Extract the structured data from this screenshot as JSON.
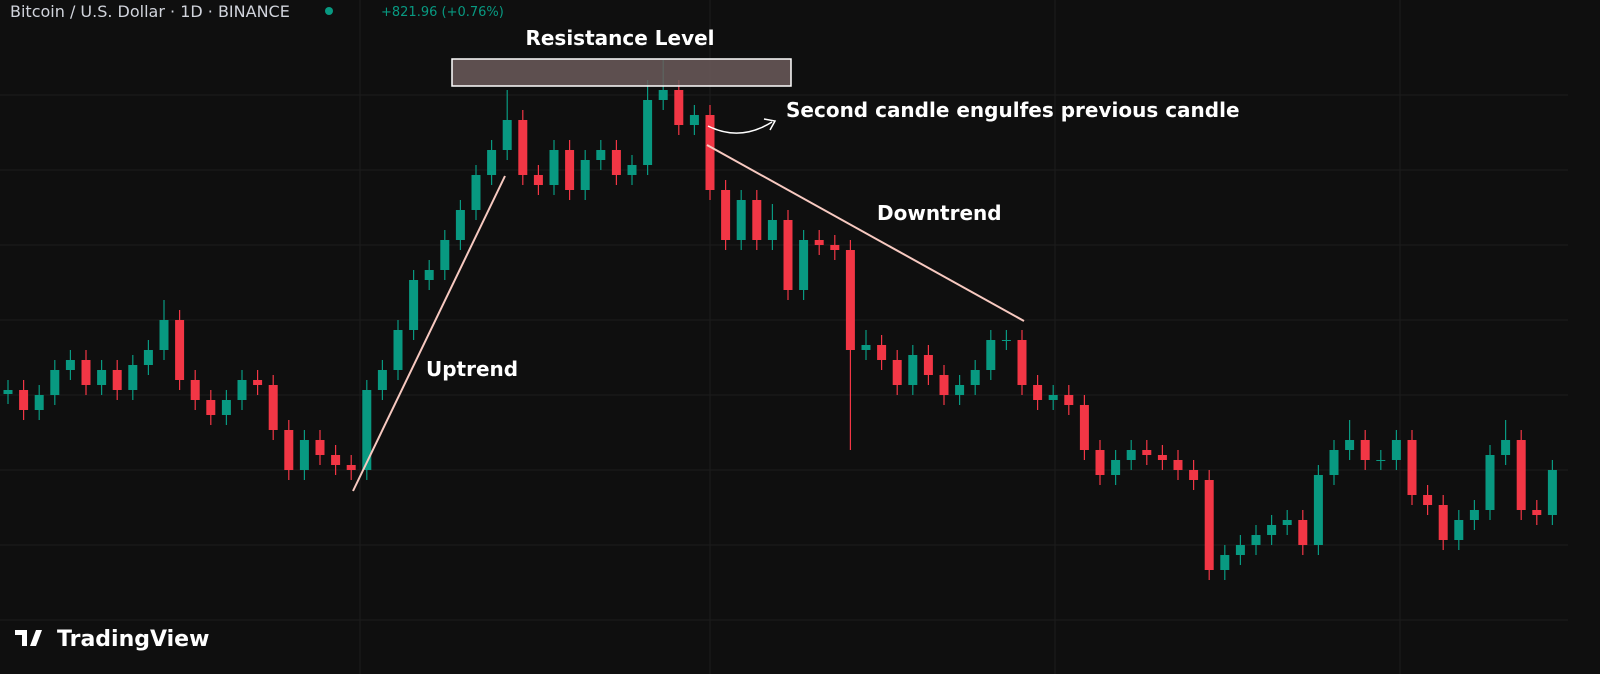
{
  "header": {
    "symbol": "Bitcoin / U.S. Dollar · 1D · BINANCE",
    "change": "+821.96 (+0.76%)"
  },
  "logo": "TradingView",
  "chart_data": {
    "type": "candlestick",
    "annotations": [
      "Resistance Level",
      "Second candle engulfes previous candle",
      "Downtrend",
      "Uptrend"
    ],
    "up_color": "#089981",
    "down_color": "#f23645",
    "ylim": [
      0,
      674
    ],
    "open": [
      280,
      284,
      264,
      279,
      304,
      314,
      289,
      304,
      284,
      309,
      324,
      354,
      294,
      274,
      259,
      274,
      294,
      289,
      244,
      204,
      234,
      219,
      209,
      204,
      284,
      304,
      344,
      394,
      404,
      434,
      464,
      499,
      524,
      554,
      499,
      489,
      524,
      484,
      514,
      524,
      499,
      509,
      574,
      584,
      549,
      559,
      484,
      434,
      474,
      434,
      454,
      384,
      434,
      429,
      424,
      324,
      329,
      314,
      289,
      319,
      299,
      279,
      289,
      304,
      334,
      334,
      289,
      274,
      279,
      269,
      224,
      199,
      214,
      224,
      219,
      214,
      204,
      194,
      104,
      119,
      129,
      139,
      149,
      154,
      129,
      199,
      224,
      234,
      214,
      214,
      234,
      179,
      169,
      134,
      154,
      164,
      219,
      234,
      164,
      159
    ],
    "high": [
      294,
      294,
      289,
      314,
      324,
      324,
      314,
      314,
      319,
      334,
      374,
      364,
      304,
      284,
      284,
      304,
      304,
      299,
      254,
      244,
      244,
      229,
      219,
      294,
      314,
      354,
      404,
      414,
      444,
      474,
      509,
      534,
      584,
      564,
      509,
      534,
      534,
      524,
      534,
      534,
      519,
      594,
      614,
      594,
      569,
      569,
      494,
      484,
      484,
      470,
      464,
      444,
      444,
      439,
      434,
      344,
      339,
      324,
      329,
      329,
      309,
      299,
      314,
      344,
      344,
      344,
      299,
      289,
      289,
      279,
      234,
      224,
      234,
      234,
      229,
      224,
      214,
      204,
      129,
      139,
      149,
      159,
      164,
      164,
      209,
      234,
      254,
      244,
      224,
      244,
      244,
      189,
      179,
      164,
      174,
      229,
      254,
      244,
      174,
      214
    ],
    "low": [
      270,
      254,
      254,
      269,
      294,
      279,
      279,
      274,
      274,
      299,
      314,
      284,
      264,
      249,
      249,
      264,
      279,
      234,
      194,
      194,
      209,
      199,
      194,
      194,
      274,
      294,
      334,
      384,
      394,
      424,
      454,
      489,
      514,
      489,
      479,
      479,
      474,
      474,
      504,
      489,
      489,
      499,
      564,
      539,
      539,
      474,
      424,
      424,
      424,
      424,
      374,
      374,
      419,
      414,
      224,
      314,
      304,
      279,
      279,
      289,
      269,
      269,
      279,
      294,
      324,
      279,
      264,
      264,
      259,
      214,
      189,
      189,
      204,
      209,
      204,
      194,
      184,
      94,
      94,
      109,
      119,
      129,
      139,
      119,
      119,
      189,
      214,
      204,
      204,
      204,
      169,
      159,
      124,
      124,
      144,
      154,
      209,
      154,
      149,
      149
    ],
    "close": [
      284,
      264,
      279,
      304,
      314,
      289,
      304,
      284,
      309,
      324,
      354,
      294,
      274,
      259,
      274,
      294,
      289,
      244,
      204,
      234,
      219,
      209,
      204,
      284,
      304,
      344,
      394,
      404,
      434,
      464,
      499,
      524,
      554,
      499,
      489,
      524,
      484,
      514,
      524,
      499,
      509,
      574,
      584,
      549,
      559,
      484,
      434,
      474,
      434,
      454,
      384,
      434,
      429,
      424,
      324,
      329,
      314,
      289,
      319,
      299,
      279,
      289,
      304,
      334,
      334,
      289,
      274,
      279,
      269,
      224,
      199,
      214,
      224,
      219,
      214,
      204,
      194,
      104,
      119,
      129,
      139,
      149,
      154,
      129,
      199,
      224,
      234,
      214,
      214,
      234,
      179,
      169,
      134,
      154,
      164,
      219,
      234,
      164,
      159,
      204
    ]
  }
}
